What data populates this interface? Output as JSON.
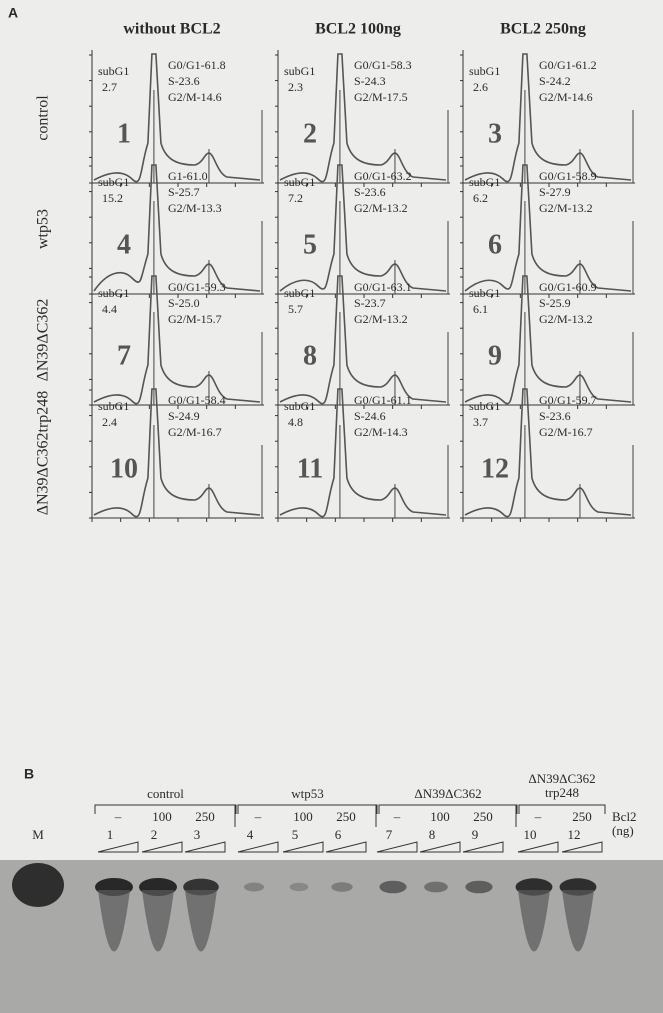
{
  "panel_a": {
    "label": "A",
    "column_headers": [
      "without BCL2",
      "BCL2 100ng",
      "BCL2 250ng"
    ],
    "row_labels": [
      "control",
      "wtp53",
      "ΔN39ΔC362",
      "ΔN39ΔC362trp248"
    ],
    "cells": [
      {
        "number": "1",
        "subg1_label": "subG1",
        "subg1_value": "2.7",
        "stats": [
          "G0/G1-61.8",
          "S-23.6",
          "G2/M-14.6"
        ]
      },
      {
        "number": "2",
        "subg1_label": "subG1",
        "subg1_value": "2.3",
        "stats": [
          "G0/G1-58.3",
          "S-24.3",
          "G2/M-17.5"
        ]
      },
      {
        "number": "3",
        "subg1_label": "subG1",
        "subg1_value": "2.6",
        "stats": [
          "G0/G1-61.2",
          "S-24.2",
          "G2/M-14.6"
        ]
      },
      {
        "number": "4",
        "subg1_label": "subG1",
        "subg1_value": "15.2",
        "stats": [
          "G1-61.0",
          "S-25.7",
          "G2/M-13.3"
        ]
      },
      {
        "number": "5",
        "subg1_label": "subG1",
        "subg1_value": "7.2",
        "stats": [
          "G0/G1-63.2",
          "S-23.6",
          "G2/M-13.2"
        ]
      },
      {
        "number": "6",
        "subg1_label": "subG1",
        "subg1_value": "6.2",
        "stats": [
          "G0/G1-58.9",
          "S-27.9",
          "G2/M-13.2"
        ]
      },
      {
        "number": "7",
        "subg1_label": "subG1",
        "subg1_value": "4.4",
        "stats": [
          "G0/G1-59.3",
          "S-25.0",
          "G2/M-15.7"
        ]
      },
      {
        "number": "8",
        "subg1_label": "subG1",
        "subg1_value": "5.7",
        "stats": [
          "G0/G1-63.1",
          "S-23.7",
          "G2/M-13.2"
        ]
      },
      {
        "number": "9",
        "subg1_label": "subG1",
        "subg1_value": "6.1",
        "stats": [
          "G0/G1-60.9",
          "S-25.9",
          "G2/M-13.2"
        ]
      },
      {
        "number": "10",
        "subg1_label": "subG1",
        "subg1_value": "2.4",
        "stats": [
          "G0/G1-58.4",
          "S-24.9",
          "G2/M-16.7"
        ]
      },
      {
        "number": "11",
        "subg1_label": "subG1",
        "subg1_value": "4.8",
        "stats": [
          "G0/G1-61.1",
          "S-24.6",
          "G2/M-14.3"
        ]
      },
      {
        "number": "12",
        "subg1_label": "subG1",
        "subg1_value": "3.7",
        "stats": [
          "G0/G1-59.7",
          "S-23.6",
          "G2/M-16.7"
        ]
      }
    ]
  },
  "panel_b": {
    "label": "B",
    "groups": [
      {
        "name": [
          "control"
        ],
        "doses": [
          "–",
          "100",
          "250"
        ],
        "lanes": [
          "1",
          "2",
          "3"
        ]
      },
      {
        "name": [
          "wtp53"
        ],
        "doses": [
          "–",
          "100",
          "250"
        ],
        "lanes": [
          "4",
          "5",
          "6"
        ]
      },
      {
        "name": [
          "ΔN39ΔC362"
        ],
        "doses": [
          "–",
          "100",
          "250"
        ],
        "lanes": [
          "7",
          "8",
          "9"
        ]
      },
      {
        "name": [
          "ΔN39ΔC362",
          "trp248"
        ],
        "doses": [
          "–",
          "250"
        ],
        "lanes": [
          "10",
          "12"
        ]
      }
    ],
    "marker_label": "M",
    "dose_label": [
      "Bcl2",
      "(ng)"
    ]
  }
}
